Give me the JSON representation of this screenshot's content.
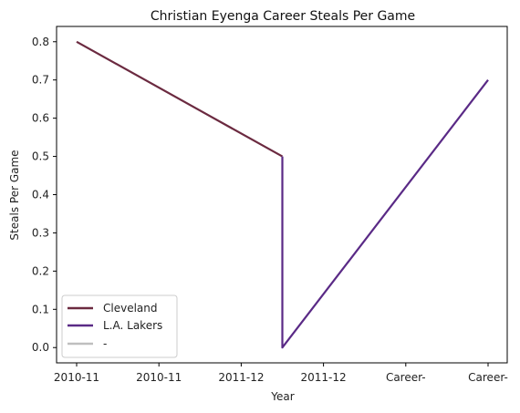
{
  "chart_data": {
    "type": "line",
    "title": "Christian Eyenga Career Steals Per Game",
    "xlabel": "Year",
    "ylabel": "Steals Per Game",
    "x_categories": [
      "2010-11",
      "2010-11",
      "2011-12",
      "2011-12",
      "Career-",
      "Career-"
    ],
    "ylim": [
      -0.04,
      0.84
    ],
    "yticks": [
      0.0,
      0.1,
      0.2,
      0.3,
      0.4,
      0.5,
      0.6,
      0.7,
      0.8
    ],
    "ytick_labels": [
      "0.0",
      "0.1",
      "0.2",
      "0.3",
      "0.4",
      "0.5",
      "0.6",
      "0.7",
      "0.8"
    ],
    "grid": false,
    "legend_position": "lower-left",
    "series": [
      {
        "name": "Cleveland",
        "color": "#6b2a40",
        "x": [
          0,
          2.5
        ],
        "y": [
          0.8,
          0.5
        ]
      },
      {
        "name": "L.A. Lakers",
        "color": "#5a2a86",
        "x": [
          2.5,
          2.5,
          5
        ],
        "y": [
          0.5,
          0.0,
          0.7
        ]
      },
      {
        "name": "-",
        "color": "#bfbfbf",
        "x": [],
        "y": []
      }
    ]
  }
}
